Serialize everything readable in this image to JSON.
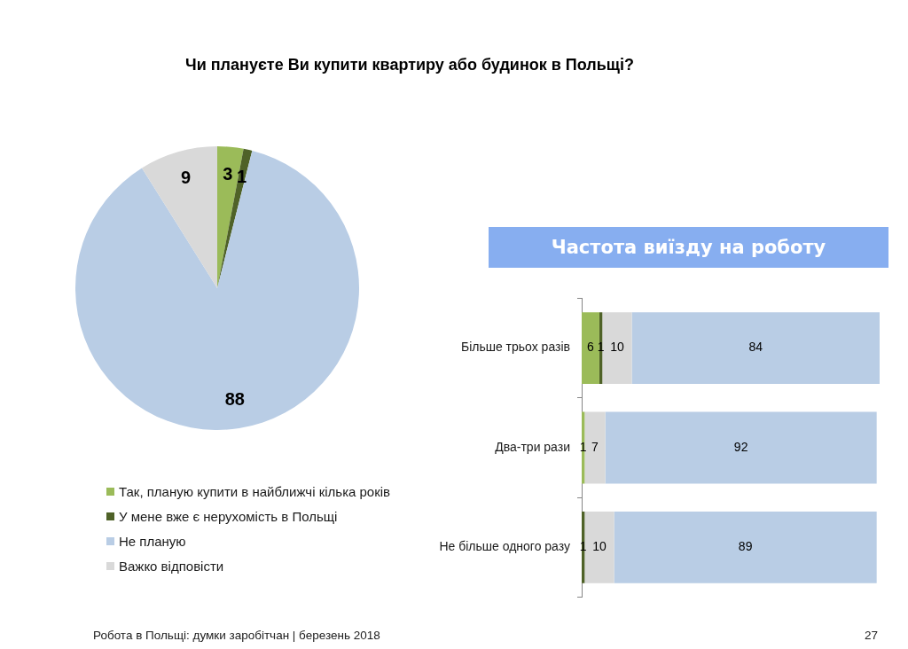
{
  "chart_data": [
    {
      "type": "pie",
      "title": "Чи плануєте Ви купити квартиру або будинок в Польщі?",
      "categories": [
        "Так, планую купити в найближчі кілька років",
        "У мене вже є нерухомість в Польщі",
        "Не планую",
        "Важко відповісти"
      ],
      "values": [
        3,
        1,
        88,
        9
      ],
      "colors": [
        "#9bbb59",
        "#4f6228",
        "#b9cde5",
        "#d9d9d9"
      ],
      "data_labels": true,
      "legend": "bottom",
      "annotations": [
        "Робота в Польщі: думки заробітчан | березень 2018",
        "27"
      ]
    },
    {
      "type": "bar",
      "title": "Частота виїзду на роботу",
      "orientation": "horizontal",
      "stacked": true,
      "categories": [
        "Більше трьох разів",
        "Два-три рази",
        "Не більше одного разу"
      ],
      "series": [
        {
          "color": "#9bbb59",
          "values": [
            6,
            1,
            null
          ]
        },
        {
          "color": "#4f6228",
          "values": [
            1,
            null,
            1
          ]
        },
        {
          "color": "#d9d9d9",
          "values": [
            10,
            7,
            10
          ]
        },
        {
          "color": "#b9cde5",
          "values": [
            84,
            92,
            89
          ]
        }
      ],
      "xlim": [
        0,
        101
      ],
      "tick_labels": "y",
      "data_labels": true
    }
  ]
}
